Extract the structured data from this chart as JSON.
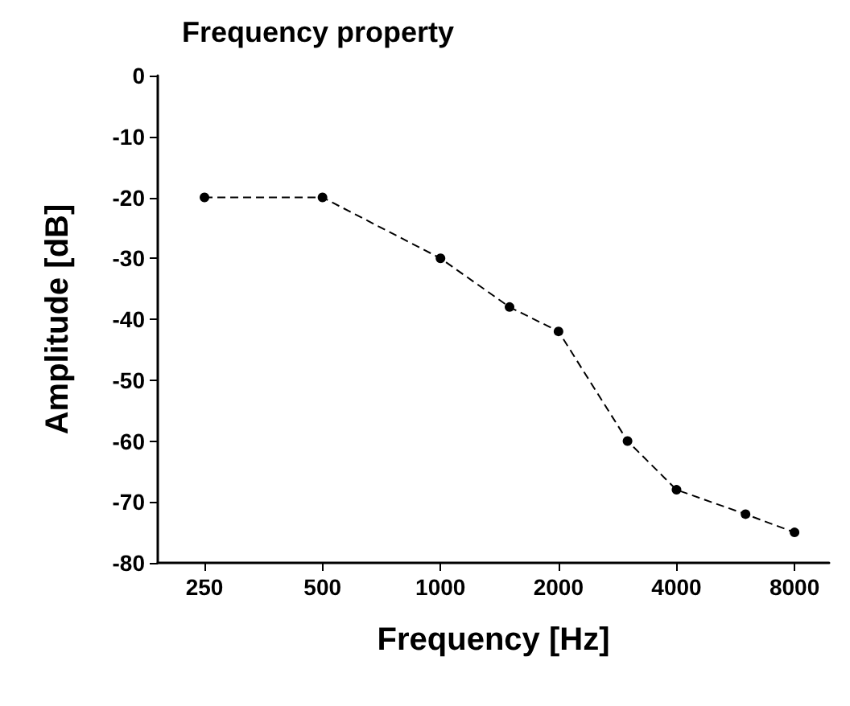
{
  "chart_data": {
    "type": "line",
    "title": "Frequency property",
    "xlabel": "Frequency [Hz]",
    "ylabel": "Amplitude [dB]",
    "x": [
      250,
      500,
      1000,
      1500,
      2000,
      3000,
      4000,
      6000,
      8000
    ],
    "series": [
      {
        "color": "#000000",
        "values": [
          -20,
          -20,
          -30,
          -38,
          -42,
          -60,
          -68,
          -72,
          -75
        ]
      }
    ],
    "log": "x",
    "xlim": [
      190,
      9800
    ],
    "xticks": [
      250,
      500,
      1000,
      2000,
      4000,
      8000
    ],
    "ylim": [
      -80,
      0
    ],
    "yticks": [
      0,
      -10,
      -20,
      -30,
      -40,
      -50,
      -60,
      -70,
      -80
    ],
    "grid": false,
    "marker": "circle",
    "line_style": "dashed"
  }
}
